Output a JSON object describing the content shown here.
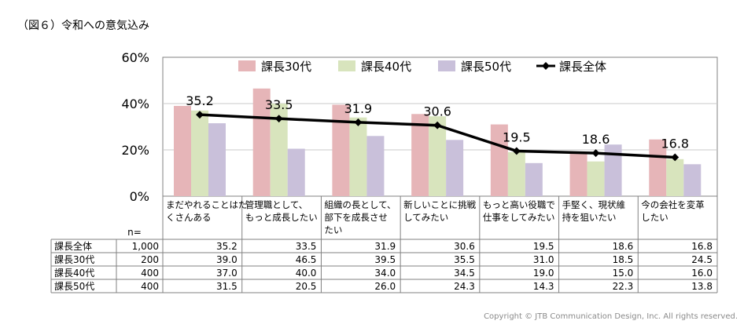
{
  "title": "（図６）令和への意気込み",
  "copyright": "Copyright © JTB Communication Design, Inc. All rights reserved.",
  "colors": {
    "s30": "#E6B5B8",
    "s40": "#D8E4BD",
    "s50": "#C9C0DA",
    "total": "#000000",
    "grid": "#c8c8c8"
  },
  "chart_data": {
    "type": "bar",
    "ylim": [
      0,
      60
    ],
    "yticks": [
      "0%",
      "20%",
      "40%",
      "60%"
    ],
    "categories": [
      [
        "まだやれることはた",
        "くさんある"
      ],
      [
        "管理職として、",
        "もっと成長したい"
      ],
      [
        "組織の長として、",
        "部下を成長させ",
        "たい"
      ],
      [
        "新しいことに挑戦",
        "してみたい"
      ],
      [
        "もっと高い役職で",
        "仕事をしてみたい"
      ],
      [
        "手堅く、現状維",
        "持を狙いたい"
      ],
      [
        "今の会社を変革",
        "したい"
      ]
    ],
    "series": [
      {
        "name": "課長30代",
        "values": [
          39.0,
          46.5,
          39.5,
          35.5,
          31.0,
          18.5,
          24.5
        ]
      },
      {
        "name": "課長40代",
        "values": [
          37.0,
          40.0,
          34.0,
          34.5,
          19.0,
          15.0,
          16.0
        ]
      },
      {
        "name": "課長50代",
        "values": [
          31.5,
          20.5,
          26.0,
          24.3,
          14.3,
          22.3,
          13.8
        ]
      }
    ],
    "line": {
      "name": "課長全体",
      "values": [
        35.2,
        33.5,
        31.9,
        30.6,
        19.5,
        18.6,
        16.8
      ],
      "labels": [
        "35.2",
        "33.5",
        "31.9",
        "30.6",
        "19.5",
        "18.6",
        "16.8"
      ]
    },
    "legend": "top",
    "grid": true
  },
  "table": {
    "n_label": "n=",
    "rows": [
      {
        "label": "課長全体",
        "n": "1,000",
        "values": [
          "35.2",
          "33.5",
          "31.9",
          "30.6",
          "19.5",
          "18.6",
          "16.8"
        ]
      },
      {
        "label": "課長30代",
        "n": "200",
        "values": [
          "39.0",
          "46.5",
          "39.5",
          "35.5",
          "31.0",
          "18.5",
          "24.5"
        ]
      },
      {
        "label": "課長40代",
        "n": "400",
        "values": [
          "37.0",
          "40.0",
          "34.0",
          "34.5",
          "19.0",
          "15.0",
          "16.0"
        ]
      },
      {
        "label": "課長50代",
        "n": "400",
        "values": [
          "31.5",
          "20.5",
          "26.0",
          "24.3",
          "14.3",
          "22.3",
          "13.8"
        ]
      }
    ]
  }
}
